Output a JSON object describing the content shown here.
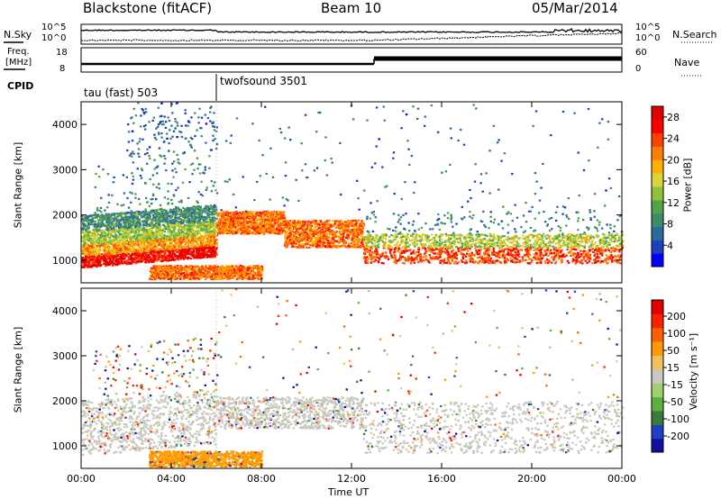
{
  "header": {
    "station": "Blackstone (fitACF)",
    "beam": "Beam 10",
    "date": "05/Mar/2014"
  },
  "noise_panel": {
    "left_label": "N.Sky",
    "right_label": "N.Search",
    "left_ticks": [
      "10^5",
      "10^0"
    ],
    "right_ticks": [
      "10^5",
      "10^0"
    ]
  },
  "freq_panel": {
    "left_label_line1": "Freq.",
    "left_label_line2": "[MHz]",
    "left_ticks": [
      "18",
      "8"
    ],
    "right_label": "Nave",
    "right_ticks": [
      "60",
      "0"
    ],
    "cpid_label": "CPID",
    "program_1": "tau (fast) 503",
    "program_2": "twofsound 3501"
  },
  "chart_data": [
    {
      "type": "heatmap",
      "panel": "power",
      "ylabel": "Slant Range [km]",
      "yticks": [
        1000,
        2000,
        3000,
        4000
      ],
      "ylim": [
        500,
        4500
      ],
      "xlabel": "Time UT",
      "xticks": [
        "00:00",
        "04:00",
        "08:00",
        "12:00",
        "16:00",
        "20:00",
        "00:00"
      ],
      "xlim_hours": [
        0,
        24
      ],
      "colorbar_label": "Power [dB]",
      "colorbar_ticks": [
        4,
        8,
        12,
        16,
        20,
        24,
        28
      ],
      "colorbar_range": [
        0,
        30
      ],
      "colorscale": [
        "#0000ff",
        "#1e3fbf",
        "#2e6b9a",
        "#3f8a6a",
        "#56a24a",
        "#8fc23a",
        "#d6d63a",
        "#ffb000",
        "#ff8000",
        "#ff4000",
        "#ff0000",
        "#e00000"
      ],
      "regions": [
        {
          "t": [
            0,
            6
          ],
          "r": [
            850,
            1100
          ],
          "level": 27
        },
        {
          "t": [
            0,
            6
          ],
          "r": [
            1100,
            1350
          ],
          "level": 20
        },
        {
          "t": [
            0,
            6
          ],
          "r": [
            1350,
            1650
          ],
          "level": 14
        },
        {
          "t": [
            0,
            6
          ],
          "r": [
            1650,
            2000
          ],
          "level": 9
        },
        {
          "t": [
            0.5,
            6
          ],
          "r": [
            1900,
            3200
          ],
          "level": 8,
          "sparse": true
        },
        {
          "t": [
            2,
            6
          ],
          "r": [
            3200,
            4400
          ],
          "level": 6,
          "sparse": true
        },
        {
          "t": [
            3,
            8
          ],
          "r": [
            600,
            900
          ],
          "level": 22
        },
        {
          "t": [
            6,
            9
          ],
          "r": [
            1600,
            2100
          ],
          "level": 22
        },
        {
          "t": [
            9,
            12.5
          ],
          "r": [
            1300,
            1900
          ],
          "level": 22
        },
        {
          "t": [
            12.5,
            24
          ],
          "r": [
            950,
            1300
          ],
          "level": 24
        },
        {
          "t": [
            12.5,
            24
          ],
          "r": [
            1300,
            1600
          ],
          "level": 15
        },
        {
          "t": [
            12.5,
            24
          ],
          "r": [
            1600,
            2100
          ],
          "level": 8,
          "sparse": true
        },
        {
          "t": [
            6,
            24
          ],
          "r": [
            2100,
            4500
          ],
          "level": 6,
          "sparse": true
        }
      ]
    },
    {
      "type": "heatmap",
      "panel": "velocity",
      "ylabel": "Slant Range [km]",
      "yticks": [
        1000,
        2000,
        3000,
        4000
      ],
      "ylim": [
        500,
        4500
      ],
      "xlabel": "Time UT",
      "xticks": [
        "00:00",
        "04:00",
        "08:00",
        "12:00",
        "16:00",
        "20:00",
        "00:00"
      ],
      "xlim_hours": [
        0,
        24
      ],
      "colorbar_label": "Velocity [m s⁻¹]",
      "colorbar_ticks": [
        200,
        100,
        50,
        15,
        -15,
        -50,
        -100,
        -200
      ],
      "colorscale": [
        "#1010a0",
        "#2040c0",
        "#3a7a3a",
        "#5ab040",
        "#a0d070",
        "#c8c8c0",
        "#f0c060",
        "#ff9a00",
        "#ff6000",
        "#ff2000",
        "#e00000"
      ],
      "regions": [
        {
          "t": [
            0,
            6
          ],
          "r": [
            800,
            2000
          ],
          "cls": 5
        },
        {
          "t": [
            0.5,
            6
          ],
          "r": [
            2000,
            3200
          ],
          "cls": 4,
          "sparse": true
        },
        {
          "t": [
            3,
            8
          ],
          "r": [
            550,
            900
          ],
          "cls": 7
        },
        {
          "t": [
            6,
            12.5
          ],
          "r": [
            1400,
            2100
          ],
          "cls": 5
        },
        {
          "t": [
            12.5,
            24
          ],
          "r": [
            850,
            2000
          ],
          "cls": 5
        },
        {
          "t": [
            6,
            24
          ],
          "r": [
            2100,
            4500
          ],
          "cls": 8,
          "sparse": true
        }
      ]
    }
  ]
}
